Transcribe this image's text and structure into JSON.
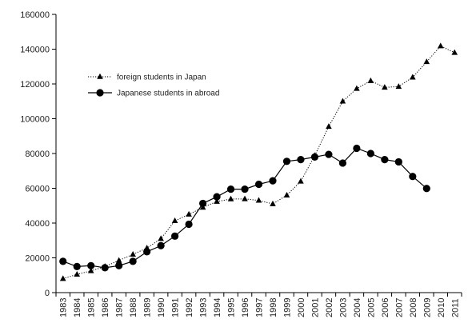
{
  "chart_data": {
    "type": "line",
    "title": "",
    "xlabel": "",
    "ylabel": "",
    "grid": false,
    "legend_placement": "upper-left",
    "ylim": [
      0,
      160000
    ],
    "y_ticks": [
      "0",
      "20000",
      "40000",
      "60000",
      "80000",
      "100000",
      "120000",
      "140000",
      "160000"
    ],
    "x": [
      "1983",
      "1984",
      "1985",
      "1986",
      "1987",
      "1988",
      "1989",
      "1990",
      "1991",
      "1992",
      "1993",
      "1994",
      "1995",
      "1996",
      "1997",
      "1998",
      "1999",
      "2000",
      "2001",
      "2002",
      "2003",
      "2004",
      "2005",
      "2006",
      "2007",
      "2008",
      "2009",
      "2010",
      "2011"
    ],
    "series": [
      {
        "name": "foreign students in Japan",
        "line_style": "dotted",
        "marker": "triangle",
        "color": "#000000",
        "values": [
          8000,
          10500,
          12500,
          15000,
          18500,
          22000,
          25600,
          31000,
          41300,
          45000,
          49000,
          52400,
          53800,
          53900,
          53000,
          51000,
          56000,
          64000,
          78800,
          95500,
          110000,
          117300,
          121800,
          118000,
          118500,
          123800,
          132700,
          141800,
          138000
        ]
      },
      {
        "name": "Japanese students in abroad",
        "line_style": "solid",
        "marker": "circle",
        "color": "#000000",
        "values": [
          18000,
          15000,
          15500,
          14300,
          15500,
          18000,
          23500,
          27000,
          32500,
          39300,
          51300,
          55100,
          59500,
          59500,
          62300,
          64300,
          75500,
          76500,
          78000,
          79500,
          74500,
          83000,
          80000,
          76500,
          75200,
          66800,
          59900,
          null,
          null
        ]
      }
    ]
  }
}
